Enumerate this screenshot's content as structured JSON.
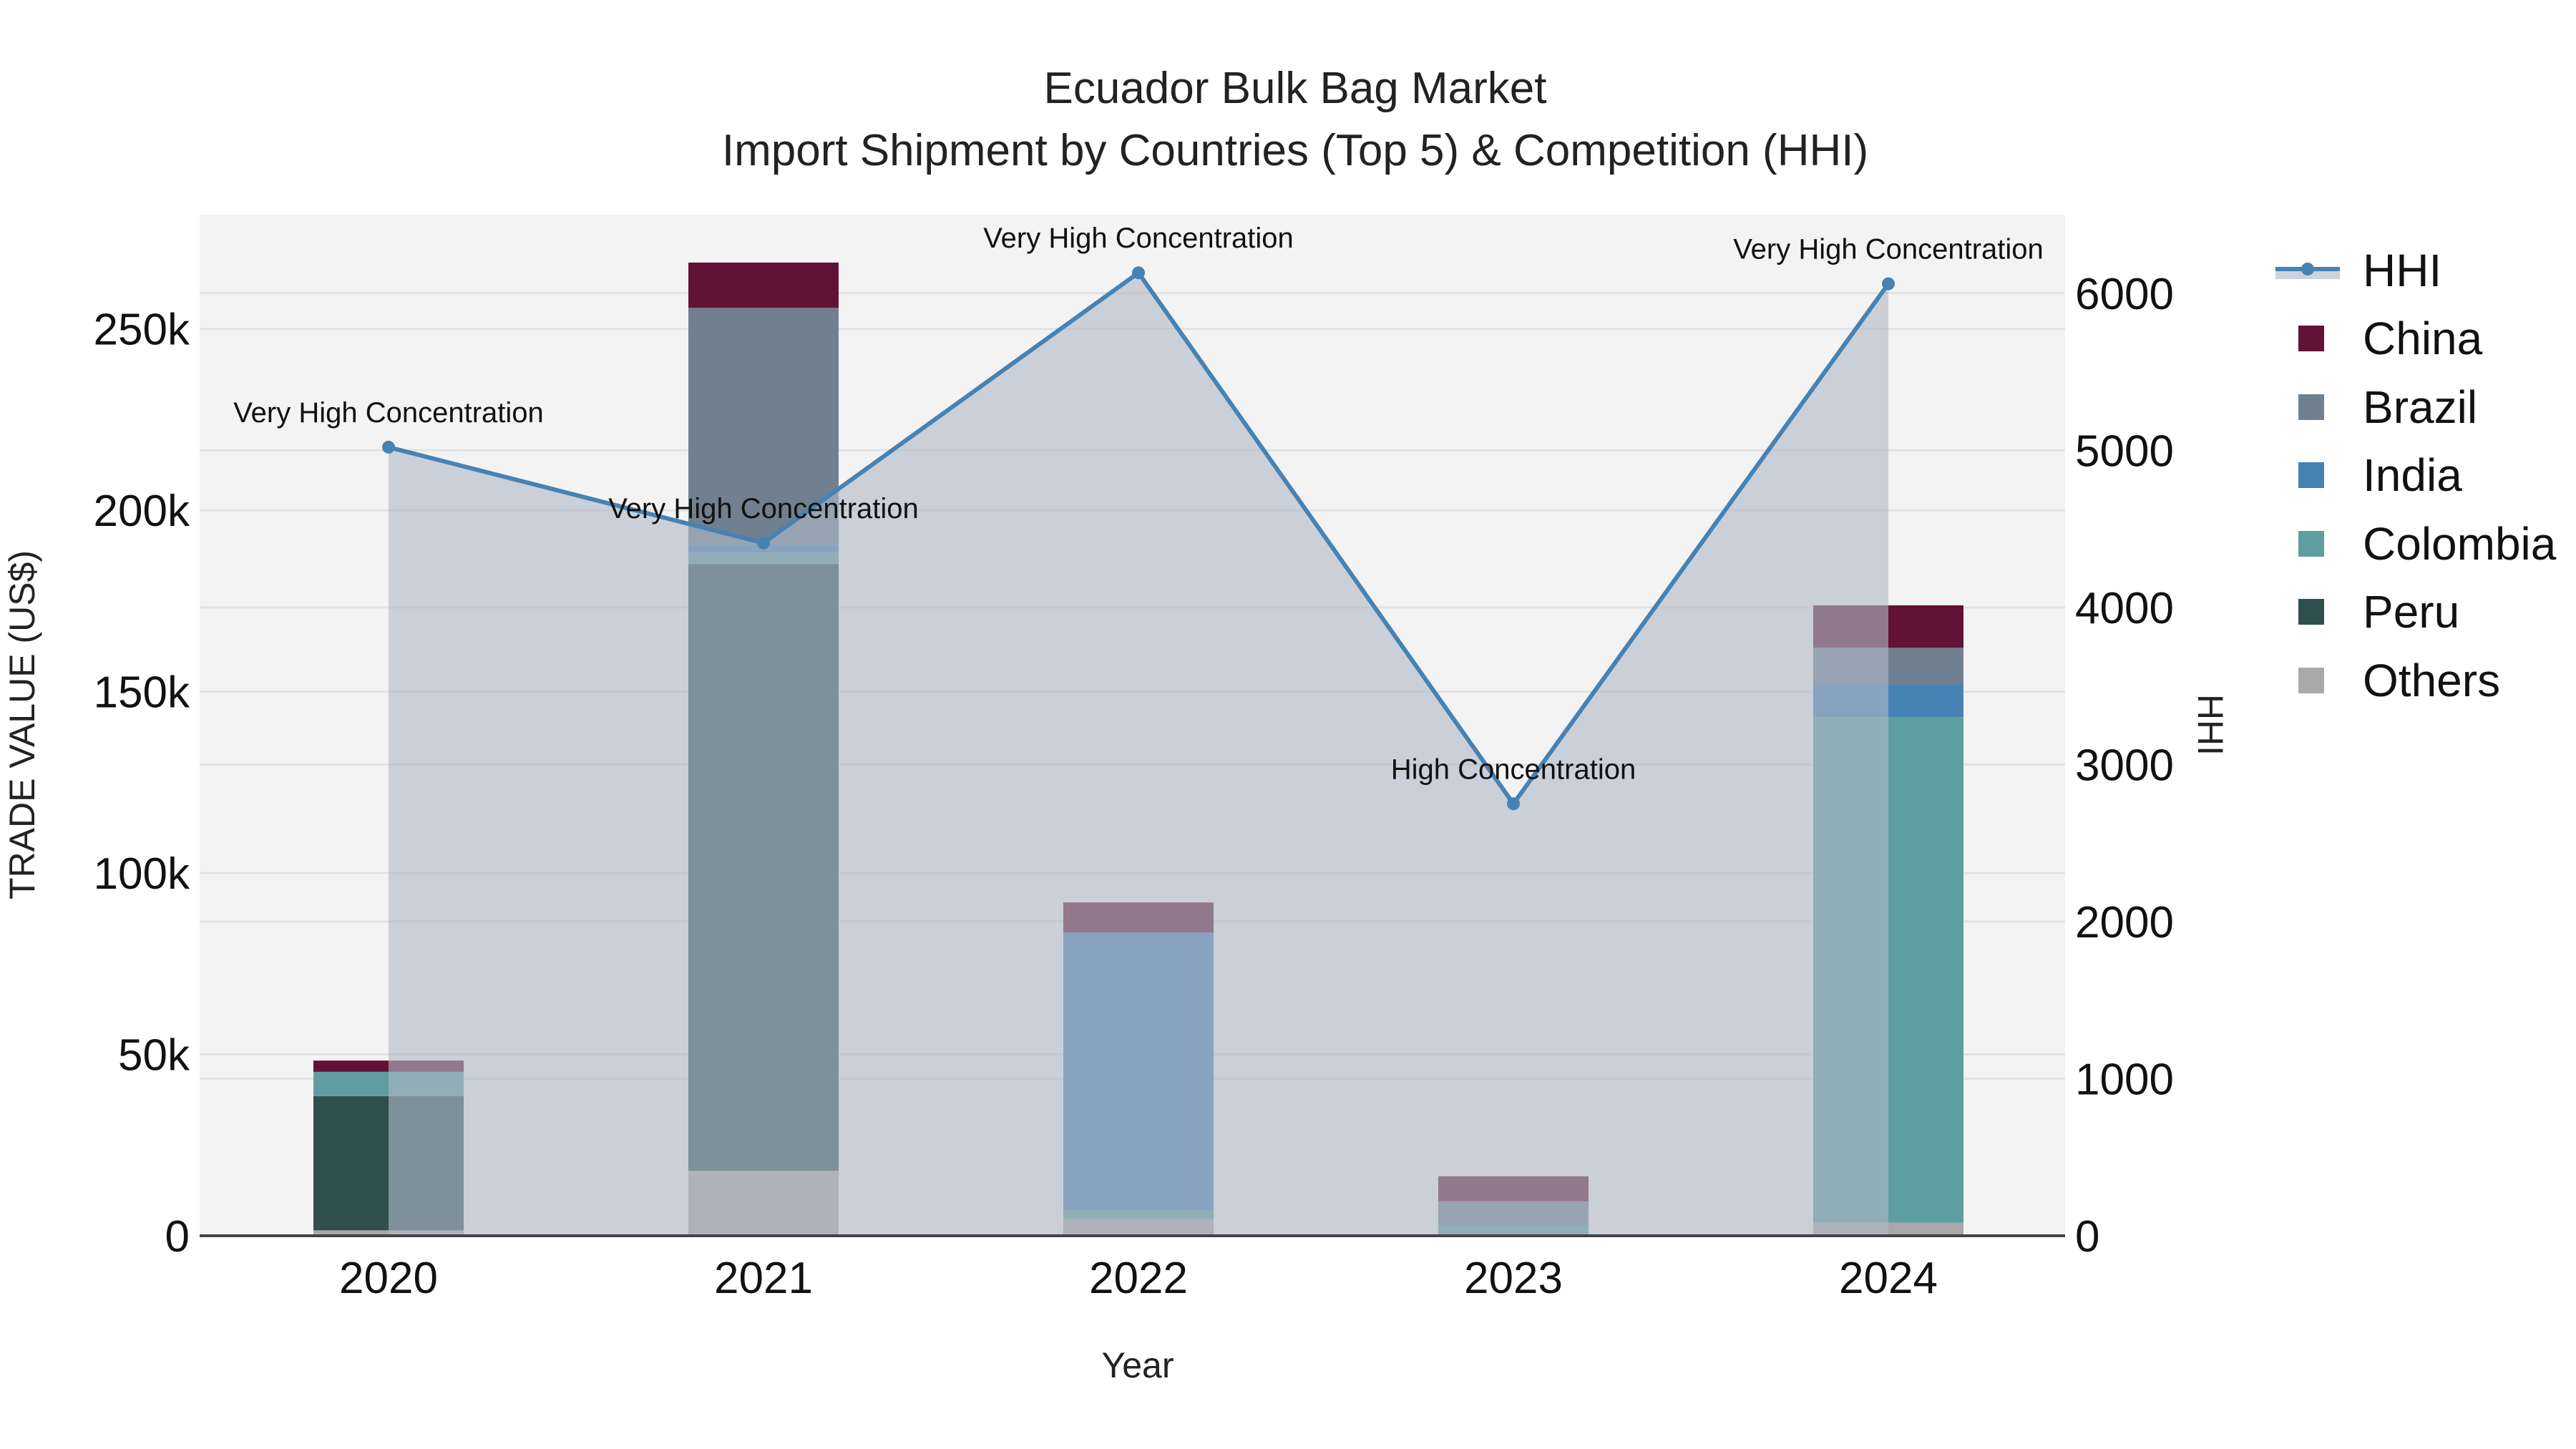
{
  "title": {
    "line1": "Ecuador Bulk Bag Market",
    "line2": "Import Shipment by Countries (Top 5) & Competition (HHI)"
  },
  "colors": {
    "China": "#621236",
    "Brazil": "#708090",
    "India": "#4682b4",
    "Colombia": "#5f9ea0",
    "Peru": "#2f4f4f",
    "Others": "#a9a9a9",
    "HHI_line": "#4682b4",
    "HHI_fill": "rgba(176,184,198,0.62)",
    "plot_bg": "#f3f3f3",
    "grid": "#e2e2e2"
  },
  "legend": [
    {
      "label": "HHI",
      "type": "line"
    },
    {
      "label": "China",
      "type": "bar"
    },
    {
      "label": "Brazil",
      "type": "bar"
    },
    {
      "label": "India",
      "type": "bar"
    },
    {
      "label": "Colombia",
      "type": "bar"
    },
    {
      "label": "Peru",
      "type": "bar"
    },
    {
      "label": "Others",
      "type": "bar"
    }
  ],
  "chart_data": {
    "type": "bar",
    "stacked": true,
    "title": "Ecuador Bulk Bag Market — Import Shipment by Countries (Top 5) & Competition (HHI)",
    "xlabel": "Year",
    "ylabel": "TRADE VALUE (US$)",
    "y2label": "HHI",
    "categories": [
      "2020",
      "2021",
      "2022",
      "2023",
      "2024"
    ],
    "stack_order": [
      "Others",
      "Peru",
      "Colombia",
      "India",
      "Brazil",
      "China"
    ],
    "series": [
      {
        "name": "China",
        "values": [
          3100,
          12500,
          8300,
          6900,
          11700
        ]
      },
      {
        "name": "Brazil",
        "values": [
          0,
          65300,
          0,
          6300,
          10100
        ]
      },
      {
        "name": "India",
        "values": [
          0,
          2100,
          76500,
          400,
          9000
        ]
      },
      {
        "name": "Colombia",
        "values": [
          6700,
          3200,
          2500,
          2800,
          139400
        ]
      },
      {
        "name": "Peru",
        "values": [
          37000,
          167300,
          0,
          0,
          0
        ]
      },
      {
        "name": "Others",
        "values": [
          1500,
          17900,
          4600,
          0,
          3600
        ]
      }
    ],
    "line_series": {
      "name": "HHI",
      "axis": "y2",
      "values": [
        5020,
        4410,
        6130,
        2750,
        6060
      ],
      "annotations": [
        "Very High Concentration",
        "Very High Concentration",
        "Very High Concentration",
        "High Concentration",
        "Very High Concentration"
      ]
    },
    "ylim": [
      0,
      281500
    ],
    "y2lim": [
      0,
      6500
    ],
    "yticks": [
      0,
      50000,
      100000,
      150000,
      200000,
      250000
    ],
    "ytick_labels": [
      "0",
      "50k",
      "100k",
      "150k",
      "200k",
      "250k"
    ],
    "y2ticks": [
      0,
      1000,
      2000,
      3000,
      4000,
      5000,
      6000
    ],
    "y2tick_labels": [
      "0",
      "1000",
      "2000",
      "3000",
      "4000",
      "5000",
      "6000"
    ],
    "grid": true,
    "legend_position": "right"
  }
}
